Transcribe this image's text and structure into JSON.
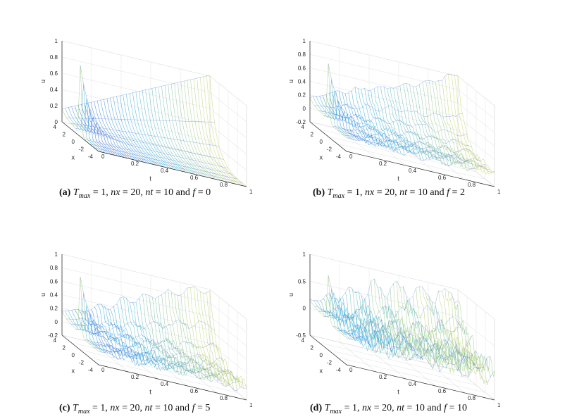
{
  "chart_data": [
    {
      "type": "surface",
      "id": "a",
      "xlabel": "t",
      "ylabel": "x",
      "zlabel": "u",
      "t_ticks": [
        "0",
        "0.2",
        "0.4",
        "0.6",
        "0.8",
        "1"
      ],
      "x_ticks": [
        "4",
        "2",
        "0",
        "-2",
        "-4"
      ],
      "z_ticks": [
        "0",
        "0.2",
        "0.4",
        "0.6",
        "0.8",
        "1"
      ],
      "z_tick_values": [
        0,
        0.2,
        0.4,
        0.6,
        0.8,
        1
      ],
      "zlim": [
        0,
        1
      ],
      "xlim": [
        -4,
        4
      ],
      "tlim": [
        0,
        1
      ],
      "f": 0,
      "caption": {
        "label": "(a)",
        "Tmax": "1",
        "nx": "20",
        "nt": "10",
        "f": "0"
      }
    },
    {
      "type": "surface",
      "id": "b",
      "xlabel": "t",
      "ylabel": "x",
      "zlabel": "u",
      "t_ticks": [
        "0",
        "0.2",
        "0.4",
        "0.6",
        "0.8",
        "1"
      ],
      "x_ticks": [
        "4",
        "2",
        "0",
        "-2",
        "-4"
      ],
      "z_ticks": [
        "-0.2",
        "0",
        "0.2",
        "0.4",
        "0.6",
        "0.8",
        "1"
      ],
      "z_tick_values": [
        -0.2,
        0,
        0.2,
        0.4,
        0.6,
        0.8,
        1
      ],
      "zlim": [
        -0.2,
        1
      ],
      "xlim": [
        -4,
        4
      ],
      "tlim": [
        0,
        1
      ],
      "f": 2,
      "caption": {
        "label": "(b)",
        "Tmax": "1",
        "nx": "20",
        "nt": "10",
        "f": "2"
      }
    },
    {
      "type": "surface",
      "id": "c",
      "xlabel": "t",
      "ylabel": "x",
      "zlabel": "u",
      "t_ticks": [
        "0",
        "0.2",
        "0.4",
        "0.6",
        "0.8",
        "1"
      ],
      "x_ticks": [
        "4",
        "2",
        "0",
        "-2",
        "-4"
      ],
      "z_ticks": [
        "-0.2",
        "0",
        "0.2",
        "0.4",
        "0.6",
        "0.8",
        "1"
      ],
      "z_tick_values": [
        -0.2,
        0,
        0.2,
        0.4,
        0.6,
        0.8,
        1
      ],
      "zlim": [
        -0.2,
        1
      ],
      "xlim": [
        -4,
        4
      ],
      "tlim": [
        0,
        1
      ],
      "f": 5,
      "caption": {
        "label": "(c)",
        "Tmax": "1",
        "nx": "20",
        "nt": "10",
        "f": "5"
      }
    },
    {
      "type": "surface",
      "id": "d",
      "xlabel": "t",
      "ylabel": "x",
      "zlabel": "u",
      "t_ticks": [
        "0",
        "0.2",
        "0.4",
        "0.6",
        "0.8",
        "1"
      ],
      "x_ticks": [
        "4",
        "2",
        "0",
        "-2",
        "-4"
      ],
      "z_ticks": [
        "-0.5",
        "0",
        "0.5",
        "1"
      ],
      "z_tick_values": [
        -0.5,
        0,
        0.5,
        1
      ],
      "zlim": [
        -0.5,
        1
      ],
      "xlim": [
        -4,
        4
      ],
      "tlim": [
        0,
        1
      ],
      "f": 10,
      "caption": {
        "label": "(d)",
        "Tmax": "1",
        "nx": "20",
        "nt": "10",
        "f": "10"
      }
    }
  ],
  "caption_text": {
    "eq": " = ",
    "and": " and ",
    "sep": ", ",
    "max": "max"
  },
  "colors": {
    "low": "#3a3ad6",
    "mid": "#38b3e0",
    "high": "#f2e34b",
    "axis": "#262626",
    "grid": "#e6e6e6"
  }
}
